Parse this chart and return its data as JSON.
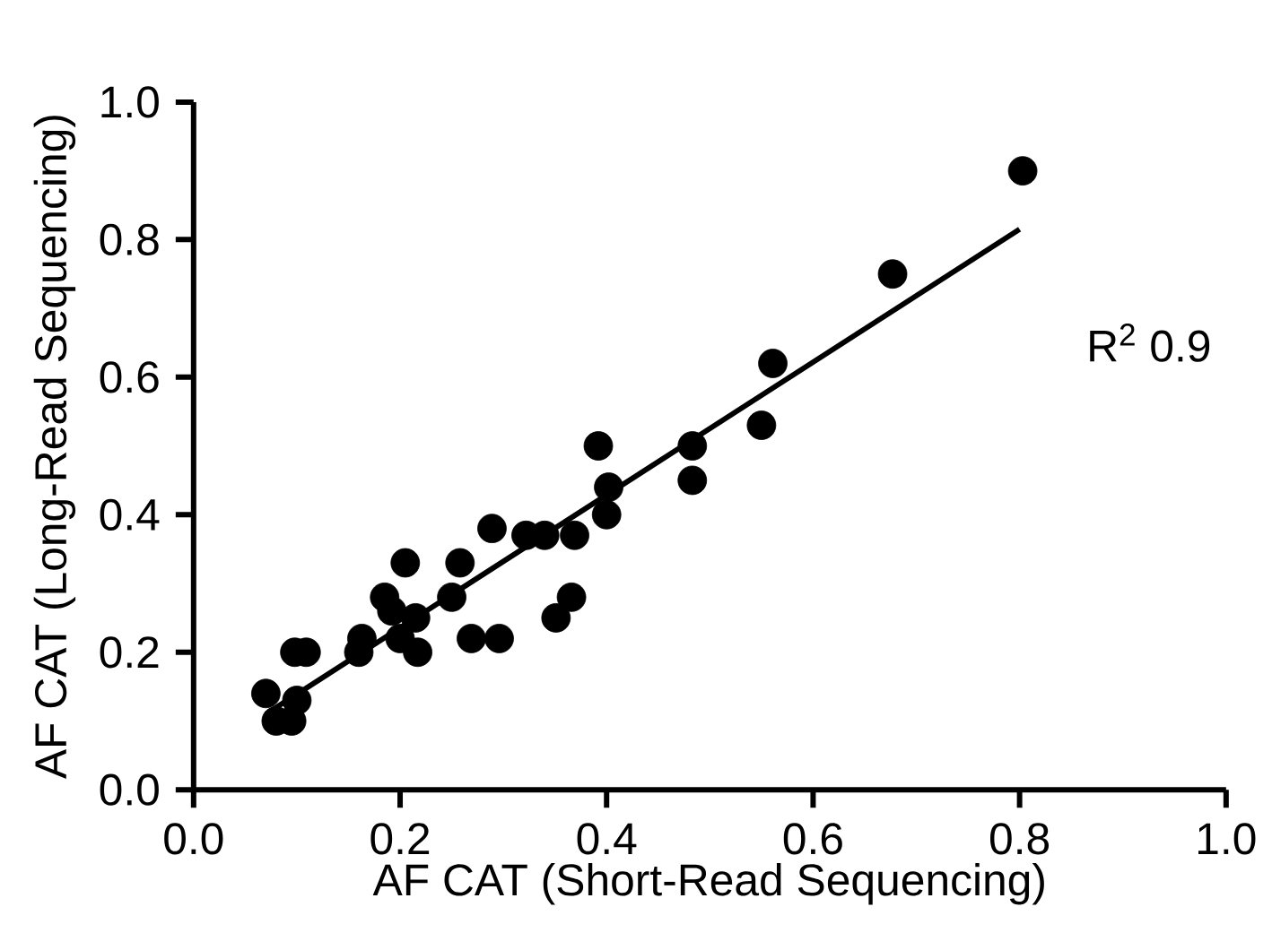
{
  "chart_data": {
    "type": "scatter",
    "xlabel": "AF CAT (Short-Read Sequencing)",
    "ylabel": "AF CAT (Long-Read Sequencing)",
    "xlim": [
      0,
      1
    ],
    "ylim": [
      0,
      1
    ],
    "xticks": [
      {
        "value": 0,
        "label": "0.0"
      },
      0.2,
      0.4,
      0.6,
      0.8,
      {
        "value": 1,
        "label": "1.0"
      }
    ],
    "yticks": [
      {
        "value": 0,
        "label": "0.0"
      },
      0.2,
      0.4,
      0.6,
      0.8,
      {
        "value": 1,
        "label": "1.0"
      }
    ],
    "grid": false,
    "annotations": [
      "R$^{2}$ 0.9"
    ],
    "series": [
      {
        "marker": "circle",
        "color": "#000000",
        "x": [
          0.07,
          0.08,
          0.095,
          0.1,
          0.098,
          0.109,
          0.16,
          0.163,
          0.185,
          0.192,
          0.205,
          0.2,
          0.215,
          0.217,
          0.25,
          0.258,
          0.269,
          0.296,
          0.289,
          0.322,
          0.34,
          0.369,
          0.392,
          0.402,
          0.4,
          0.351,
          0.366,
          0.803,
          0.677,
          0.561,
          0.55,
          0.483,
          0.483
        ],
        "values": [
          0.14,
          0.1,
          0.1,
          0.13,
          0.2,
          0.2,
          0.2,
          0.22,
          0.28,
          0.26,
          0.33,
          0.22,
          0.25,
          0.2,
          0.28,
          0.33,
          0.22,
          0.22,
          0.38,
          0.37,
          0.37,
          0.37,
          0.5,
          0.44,
          0.4,
          0.25,
          0.28,
          0.9,
          0.75,
          0.62,
          0.53,
          0.5,
          0.45
        ]
      },
      {
        "type": "line",
        "marker": "none",
        "color": "#000000",
        "x": [
          0.07,
          0.8
        ],
        "values": [
          0.11,
          0.815
        ]
      }
    ]
  }
}
